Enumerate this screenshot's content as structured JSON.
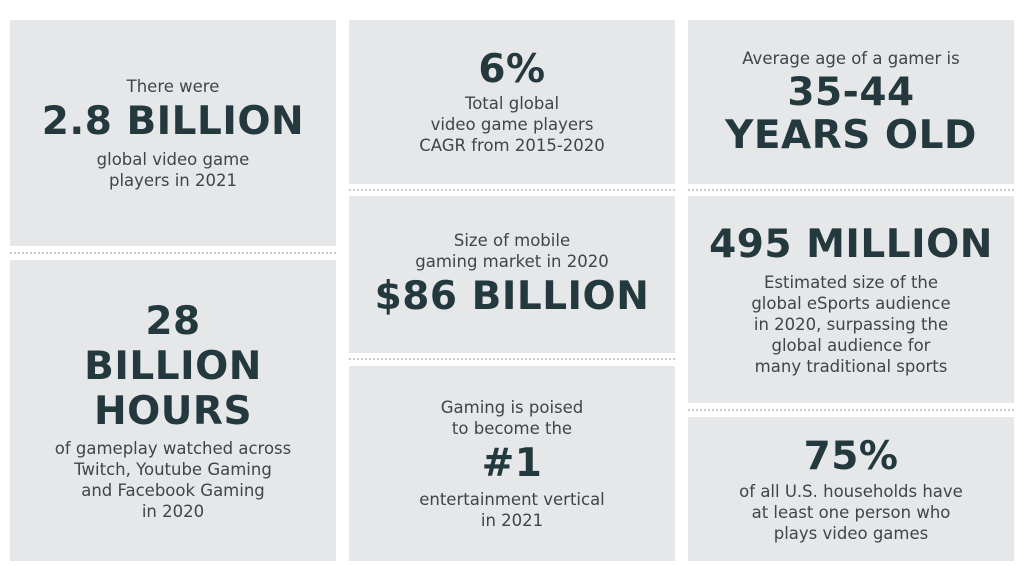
{
  "tiles": {
    "players": {
      "pre": "There were",
      "big": "2.8 BILLION",
      "post": "global video game\nplayers in 2021"
    },
    "hours": {
      "big": "28\nBILLION\nHOURS",
      "post": "of gameplay watched across\nTwitch, Youtube Gaming\nand Facebook Gaming\nin 2020"
    },
    "cagr": {
      "big": "6%",
      "post": "Total global\nvideo game players\nCAGR from 2015-2020"
    },
    "mobile": {
      "pre": "Size of mobile\ngaming market in 2020",
      "big": "$86 BILLION"
    },
    "vertical": {
      "pre": "Gaming is poised\nto become the",
      "big": "#1",
      "post": "entertainment vertical\nin 2021"
    },
    "age": {
      "pre": "Average age of a gamer is",
      "big": "35-44\nYEARS OLD"
    },
    "esports": {
      "big": "495 MILLION",
      "post": "Estimated size of the\nglobal eSports audience\nin 2020, surpassing the\nglobal audience for\nmany traditional sports"
    },
    "households": {
      "big": "75%",
      "post": "of all U.S. households have\nat least one person who\nplays video games"
    }
  },
  "colors": {
    "tile_background": "#e6e7e8",
    "headline": "#23393e",
    "body_text": "#3d4649",
    "separator": "#c9cbcd"
  }
}
